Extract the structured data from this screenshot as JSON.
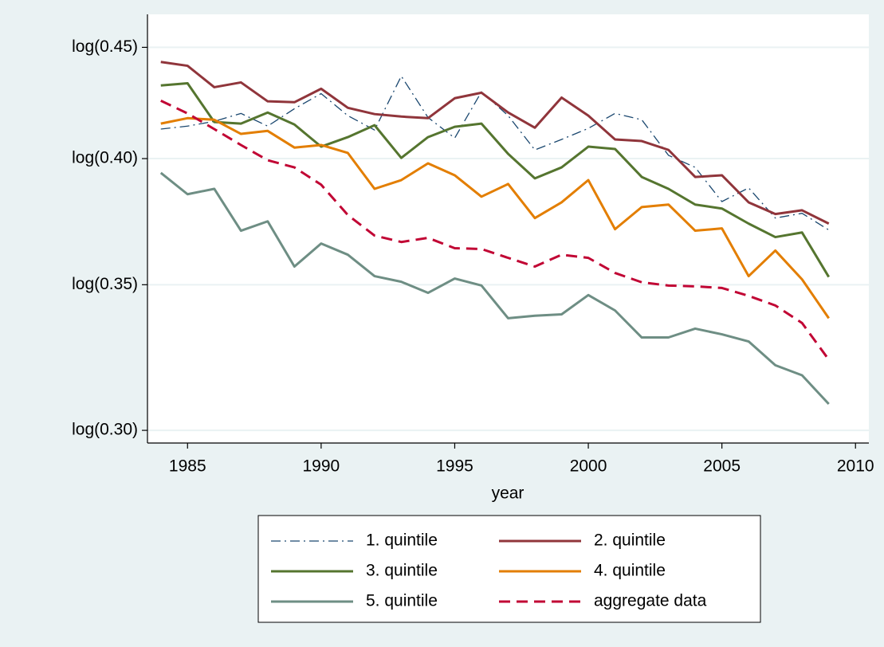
{
  "chart_data": {
    "type": "line",
    "xlabel": "year",
    "x": [
      1984,
      1985,
      1986,
      1987,
      1988,
      1989,
      1990,
      1991,
      1992,
      1993,
      1994,
      1995,
      1996,
      1997,
      1998,
      1999,
      2000,
      2001,
      2002,
      2003,
      2004,
      2005,
      2006,
      2007,
      2008,
      2009
    ],
    "xlim": [
      1983.5,
      2010.5
    ],
    "xticks": [
      1985,
      1990,
      1995,
      2000,
      2005,
      2010
    ],
    "ylim": [
      0.296,
      0.466
    ],
    "ylog": true,
    "yticks": [
      {
        "value": 0.3,
        "label": "log(0.30)"
      },
      {
        "value": 0.35,
        "label": "log(0.35)"
      },
      {
        "value": 0.4,
        "label": "log(0.40)"
      },
      {
        "value": 0.45,
        "label": "log(0.45)"
      }
    ],
    "grid": true,
    "series": [
      {
        "name": "1. quintile",
        "color": "#1a476f",
        "dash": "dashdot",
        "values": [
          0.4127,
          0.414,
          0.4161,
          0.4196,
          0.414,
          0.4217,
          0.4285,
          0.4186,
          0.4123,
          0.4365,
          0.4178,
          0.4088,
          0.4293,
          0.4186,
          0.4037,
          0.4082,
          0.413,
          0.4196,
          0.4168,
          0.4014,
          0.3963,
          0.3822,
          0.3878,
          0.3756,
          0.3775,
          0.3709
        ]
      },
      {
        "name": "2. quintile",
        "color": "#90353b",
        "dash": "solid",
        "values": [
          0.4431,
          0.4413,
          0.4314,
          0.4336,
          0.425,
          0.4246,
          0.4307,
          0.4221,
          0.4193,
          0.4182,
          0.4175,
          0.4264,
          0.4289,
          0.42,
          0.4133,
          0.4267,
          0.4186,
          0.4082,
          0.4075,
          0.4037,
          0.3923,
          0.393,
          0.3819,
          0.3772,
          0.3787,
          0.3734
        ]
      },
      {
        "name": "3. quintile",
        "color": "#55752f",
        "dash": "solid",
        "values": [
          0.4322,
          0.4332,
          0.4158,
          0.4151,
          0.42,
          0.4147,
          0.4051,
          0.4092,
          0.4144,
          0.4003,
          0.4092,
          0.4137,
          0.4151,
          0.402,
          0.3917,
          0.3963,
          0.4051,
          0.4041,
          0.3923,
          0.3874,
          0.381,
          0.3794,
          0.3734,
          0.3681,
          0.3699,
          0.3529
        ]
      },
      {
        "name": "4. quintile",
        "color": "#e37e00",
        "dash": "solid",
        "values": [
          0.4151,
          0.4175,
          0.4168,
          0.4106,
          0.4119,
          0.4047,
          0.4058,
          0.4024,
          0.3874,
          0.391,
          0.398,
          0.393,
          0.3842,
          0.3894,
          0.3756,
          0.3819,
          0.391,
          0.3712,
          0.38,
          0.381,
          0.3706,
          0.3715,
          0.3532,
          0.3629,
          0.352,
          0.3378
        ]
      },
      {
        "name": "5. quintile",
        "color": "#6e8e84",
        "dash": "solid",
        "values": [
          0.394,
          0.3852,
          0.3874,
          0.3706,
          0.3743,
          0.3568,
          0.3656,
          0.3613,
          0.3532,
          0.3511,
          0.347,
          0.3523,
          0.3497,
          0.3378,
          0.3387,
          0.3392,
          0.3462,
          0.3406,
          0.331,
          0.331,
          0.3341,
          0.3321,
          0.3296,
          0.3214,
          0.318,
          0.3085
        ]
      },
      {
        "name": "aggregate data",
        "color": "#c10534",
        "dash": "dashed",
        "values": [
          0.4253,
          0.4196,
          0.4127,
          0.4058,
          0.3993,
          0.3963,
          0.3891,
          0.3768,
          0.3687,
          0.3662,
          0.3678,
          0.3638,
          0.3635,
          0.3601,
          0.3568,
          0.3613,
          0.3601,
          0.3544,
          0.3509,
          0.3497,
          0.3494,
          0.3488,
          0.3459,
          0.3424,
          0.3361,
          0.3233
        ]
      }
    ]
  }
}
